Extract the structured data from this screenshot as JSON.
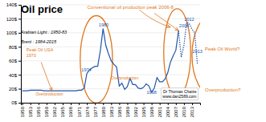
{
  "chart_data": {
    "type": "line",
    "title": "Oil price",
    "subtitle": [
      "Arabian Light : 1950-83",
      "Brent : 1984-2015"
    ],
    "x": [
      1950,
      1951,
      1952,
      1953,
      1954,
      1955,
      1956,
      1957,
      1958,
      1959,
      1960,
      1961,
      1962,
      1963,
      1964,
      1965,
      1966,
      1967,
      1968,
      1969,
      1970,
      1971,
      1972,
      1973,
      1974,
      1975,
      1976,
      1977,
      1978,
      1979,
      1980,
      1981,
      1982,
      1983,
      1984,
      1985,
      1986,
      1987,
      1988,
      1989,
      1990,
      1991,
      1992,
      1993,
      1994,
      1995,
      1996,
      1997,
      1998,
      1999,
      2000,
      2001,
      2002,
      2003,
      2004,
      2005,
      2006,
      2007,
      2008,
      2009,
      2010,
      2011,
      2012,
      2013,
      2014,
      2015
    ],
    "series": [
      {
        "color": "#2255aa",
        "line_style": "solid",
        "values": [
          17,
          17,
          17,
          18,
          18,
          18,
          18,
          18,
          17,
          17,
          17,
          17,
          17,
          17,
          17,
          17,
          17,
          17,
          17,
          17,
          17,
          18,
          18,
          21,
          42,
          47,
          50,
          52,
          52,
          75,
          106,
          82,
          70,
          60,
          55,
          51,
          24,
          28,
          19,
          23,
          35,
          26,
          26,
          21,
          20,
          22,
          27,
          24,
          15,
          21,
          36,
          30,
          30,
          34,
          43,
          58,
          67,
          75,
          103,
          null,
          null,
          null,
          null,
          null,
          null,
          null
        ]
      },
      {
        "color": "#2255aa",
        "line_style": "dotted",
        "values": [
          null,
          null,
          null,
          null,
          null,
          null,
          null,
          null,
          null,
          null,
          null,
          null,
          null,
          null,
          null,
          null,
          null,
          null,
          null,
          null,
          null,
          null,
          null,
          null,
          null,
          null,
          null,
          null,
          null,
          null,
          null,
          null,
          null,
          null,
          null,
          null,
          null,
          null,
          null,
          null,
          null,
          null,
          null,
          null,
          null,
          null,
          null,
          null,
          null,
          null,
          null,
          null,
          null,
          null,
          null,
          null,
          null,
          null,
          103,
          65,
          82,
          115,
          113,
          105,
          100,
          55
        ]
      }
    ],
    "xlim": [
      1949.5,
      2016
    ],
    "xticks": [
      1950,
      1953,
      1956,
      1959,
      1962,
      1965,
      1968,
      1971,
      1974,
      1977,
      1980,
      1983,
      1986,
      1989,
      1992,
      1995,
      1998,
      2001,
      2004,
      2007,
      2010,
      2013
    ],
    "ylim": [
      0,
      140
    ],
    "yticks": [
      {
        "value": 0,
        "label": "0$"
      },
      {
        "value": 20,
        "label": "20$"
      },
      {
        "value": 40,
        "label": "40$"
      },
      {
        "value": 60,
        "label": "60$"
      },
      {
        "value": 80,
        "label": "80$"
      },
      {
        "value": 100,
        "label": "100$"
      },
      {
        "value": 120,
        "label": "120$"
      },
      {
        "value": 140,
        "label": "140$"
      }
    ],
    "grid": true,
    "annotations": [
      {
        "text": "Conventional oil production peak 2006-8",
        "color": "#e07820"
      },
      {
        "text": [
          "Peak Oil USA",
          "1970"
        ],
        "color": "#e07820"
      },
      {
        "text": "1974",
        "color": "#2255aa"
      },
      {
        "text": "1980",
        "color": "#2255aa"
      },
      {
        "text": "2008",
        "color": "#2255aa"
      },
      {
        "text": "2012",
        "color": "#2255aa"
      },
      {
        "text": "1998",
        "color": "#2255aa"
      },
      {
        "text": "2013",
        "color": "#2255aa"
      },
      {
        "text": "Overproduction",
        "color": "#e07820"
      },
      {
        "text": "Overproduction",
        "color": "#e07820"
      },
      {
        "text": "Peak Oil World?",
        "color": "#e07820"
      },
      {
        "text": "Overproduction?",
        "color": "#e07820"
      },
      {
        "text": [
          "Dr Thomas Chaize",
          "www.dan2589.com"
        ]
      }
    ]
  }
}
